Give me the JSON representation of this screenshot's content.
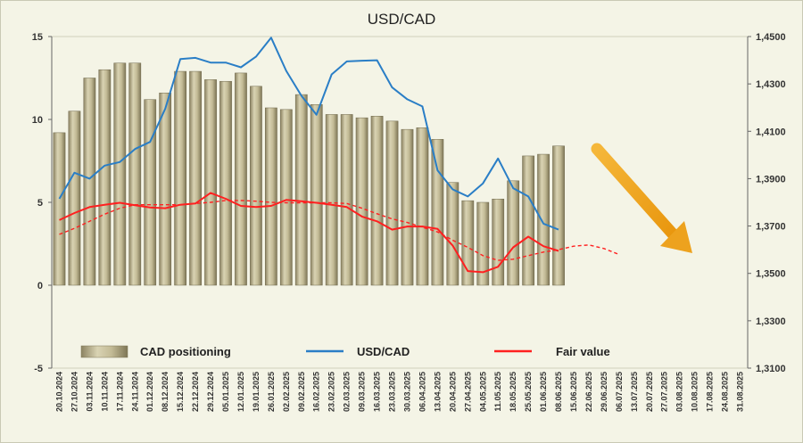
{
  "chart_data": {
    "type": "bar",
    "title": "USD/CAD",
    "x": [
      "20.10.2024",
      "27.10.2024",
      "03.11.2024",
      "10.11.2024",
      "17.11.2024",
      "24.11.2024",
      "01.12.2024",
      "08.12.2024",
      "15.12.2024",
      "22.12.2024",
      "29.12.2024",
      "05.01.2025",
      "12.01.2025",
      "19.01.2025",
      "26.01.2025",
      "02.02.2025",
      "09.02.2025",
      "16.02.2025",
      "23.02.2025",
      "02.03.2025",
      "09.03.2025",
      "16.03.2025",
      "23.03.2025",
      "30.03.2025",
      "06.04.2025",
      "13.04.2025",
      "20.04.2025",
      "27.04.2025",
      "04.05.2025",
      "11.05.2025",
      "18.05.2025",
      "25.05.2025",
      "01.06.2025",
      "08.06.2025",
      "15.06.2025",
      "22.06.2025",
      "29.06.2025",
      "06.07.2025",
      "13.07.2025",
      "20.07.2025",
      "27.07.2025",
      "03.08.2025",
      "10.08.2025",
      "17.08.2025",
      "24.08.2025",
      "31.08.2025"
    ],
    "left_axis": {
      "min": -5,
      "max": 15,
      "ticks": [
        "-5",
        "0",
        "5",
        "10",
        "15"
      ]
    },
    "right_axis": {
      "min": 1.31,
      "max": 1.45,
      "ticks": [
        "1,3100",
        "1,3300",
        "1,3500",
        "1,3700",
        "1,3900",
        "1,4100",
        "1,4300",
        "1,4500"
      ]
    },
    "series": [
      {
        "name": "CAD positioning",
        "type": "bar",
        "axis": "left",
        "color": "#bfb690",
        "values": [
          9.2,
          10.5,
          12.5,
          13.0,
          13.4,
          13.4,
          11.2,
          11.6,
          12.9,
          12.9,
          12.4,
          12.3,
          12.8,
          12.0,
          10.7,
          10.6,
          11.5,
          10.9,
          10.3,
          10.3,
          10.1,
          10.2,
          9.9,
          9.4,
          9.5,
          8.8,
          6.2,
          5.1,
          5.0,
          5.2,
          6.3,
          7.8,
          7.9,
          8.4,
          null,
          null,
          null,
          null,
          null,
          null,
          null,
          null,
          null,
          null,
          null,
          null
        ]
      },
      {
        "name": "USD/CAD",
        "type": "line",
        "axis": "right",
        "color": "#2a7ec6",
        "values": [
          1.3815,
          1.3925,
          1.39,
          1.3955,
          1.397,
          1.4025,
          1.4055,
          1.4195,
          1.4405,
          1.441,
          1.439,
          1.439,
          1.437,
          1.4415,
          1.4495,
          1.4355,
          1.425,
          1.417,
          1.434,
          1.4395,
          1.4398,
          1.44,
          1.4285,
          1.4235,
          1.4205,
          1.3935,
          1.3855,
          1.3825,
          1.388,
          1.3985,
          1.386,
          1.3825,
          1.371,
          1.3685,
          null,
          null,
          null,
          null,
          null,
          null,
          null,
          null,
          null,
          null,
          null,
          null
        ]
      },
      {
        "name": "Fair value",
        "type": "line",
        "axis": "right",
        "color": "#ff2020",
        "values": [
          1.3725,
          1.3755,
          1.378,
          1.379,
          1.3798,
          1.3788,
          1.3778,
          1.3775,
          1.379,
          1.3795,
          1.384,
          1.3815,
          1.3785,
          1.378,
          1.3785,
          1.381,
          1.3805,
          1.3798,
          1.379,
          1.378,
          1.374,
          1.372,
          1.3685,
          1.3698,
          1.3698,
          1.3688,
          1.3618,
          1.351,
          1.3505,
          1.3528,
          1.361,
          1.3655,
          1.3615,
          1.3595,
          null,
          null,
          null,
          null,
          null,
          null,
          null,
          null,
          null,
          null,
          null,
          null
        ]
      },
      {
        "name": "Fair value (projection)",
        "type": "line",
        "axis": "right",
        "dashed": true,
        "color": "#ff2020",
        "values": [
          1.3665,
          1.369,
          1.372,
          1.375,
          1.3775,
          1.379,
          1.379,
          1.379,
          1.379,
          1.3795,
          1.38,
          1.3808,
          1.3808,
          1.3805,
          1.38,
          1.3798,
          1.3798,
          1.3798,
          1.3798,
          1.3795,
          1.3775,
          1.3752,
          1.373,
          1.3715,
          1.3695,
          1.3675,
          1.364,
          1.361,
          1.3575,
          1.3555,
          1.356,
          1.3575,
          1.359,
          1.36,
          1.3615,
          1.362,
          1.3605,
          1.358,
          null,
          null,
          null,
          null,
          null,
          null,
          null,
          null
        ]
      }
    ],
    "legend": {
      "placement": "bottom",
      "entries": [
        "CAD positioning",
        "USD/CAD",
        "Fair value"
      ]
    },
    "annotation": {
      "type": "arrow",
      "color": "#f2a81c",
      "direction": "down-right"
    },
    "grid": false
  }
}
